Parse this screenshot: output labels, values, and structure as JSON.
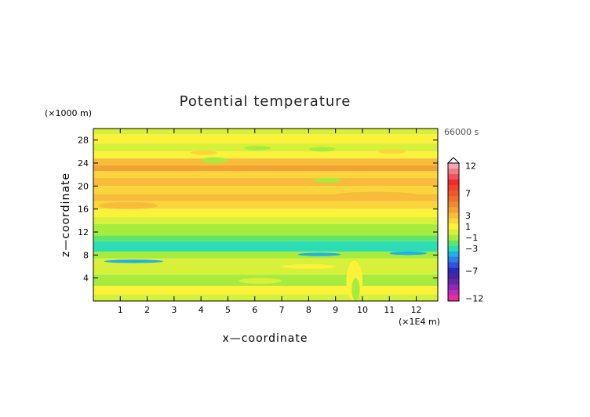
{
  "chart_data": {
    "type": "heatmap",
    "title": "Potential temperature",
    "xlabel": "x—coordinate",
    "ylabel": "z—coordinate",
    "x_unit": "(×1E4 m)",
    "y_unit": "(×1000 m)",
    "time_label": "66000 s",
    "xlim": [
      0,
      12.8
    ],
    "ylim": [
      0,
      30
    ],
    "x_ticks": [
      "1",
      "2",
      "3",
      "4",
      "5",
      "6",
      "7",
      "8",
      "9",
      "10",
      "11",
      "12"
    ],
    "x_tick_values": [
      1,
      2,
      3,
      4,
      5,
      6,
      7,
      8,
      9,
      10,
      11,
      12
    ],
    "y_ticks": [
      "4",
      "8",
      "12",
      "16",
      "20",
      "24",
      "28"
    ],
    "y_tick_values": [
      4,
      8,
      12,
      16,
      20,
      24,
      28
    ],
    "colorbar": {
      "labels": [
        "12",
        "7",
        "3",
        "1",
        "−1",
        "−3",
        "−7",
        "−12"
      ],
      "label_levels": [
        12,
        7,
        3,
        1,
        -1,
        -3,
        -7,
        -12
      ],
      "levels": [
        12,
        11,
        10,
        9,
        8,
        7,
        6,
        5,
        4,
        3,
        2,
        1,
        0,
        -1,
        -2,
        -3,
        -4,
        -5,
        -6,
        -7,
        -8,
        -9,
        -10,
        -11,
        -12
      ],
      "colors": [
        "#f7a7b3",
        "#f57b86",
        "#f2505c",
        "#ee2a2a",
        "#f2402a",
        "#f0582a",
        "#ef6f2b",
        "#f08a30",
        "#f3a236",
        "#f7bc3a",
        "#fad53c",
        "#fdf23a",
        "#d7f13a",
        "#a7ec3c",
        "#5fe66a",
        "#2cdcb4",
        "#20b0e8",
        "#2f7de8",
        "#3252d8",
        "#2a2ab8",
        "#4326a0",
        "#6626a8",
        "#8e27b6",
        "#c22ab8",
        "#ee2a9c"
      ]
    },
    "bands": [
      {
        "z": [
          0,
          1.2
        ],
        "value": 0
      },
      {
        "z": [
          1.2,
          2.6
        ],
        "value": 1
      },
      {
        "z": [
          2.6,
          4.6
        ],
        "value": -1
      },
      {
        "z": [
          4.6,
          6.0
        ],
        "value": 0
      },
      {
        "z": [
          6.0,
          7.4
        ],
        "value": 0
      },
      {
        "z": [
          7.4,
          8.6
        ],
        "value": -1
      },
      {
        "z": [
          8.6,
          10.4
        ],
        "value": -3
      },
      {
        "z": [
          10.4,
          11.4
        ],
        "value": -2
      },
      {
        "z": [
          11.4,
          13.4
        ],
        "value": -1
      },
      {
        "z": [
          13.4,
          14.6
        ],
        "value": 0
      },
      {
        "z": [
          14.6,
          16.0
        ],
        "value": 1
      },
      {
        "z": [
          16.0,
          17.4
        ],
        "value": 2
      },
      {
        "z": [
          17.4,
          18.6
        ],
        "value": 3
      },
      {
        "z": [
          18.6,
          20.0
        ],
        "value": 2
      },
      {
        "z": [
          20.0,
          21.4
        ],
        "value": 3
      },
      {
        "z": [
          21.4,
          22.6
        ],
        "value": 2
      },
      {
        "z": [
          22.6,
          23.6
        ],
        "value": 4
      },
      {
        "z": [
          23.6,
          24.8
        ],
        "value": 3
      },
      {
        "z": [
          24.8,
          26.0
        ],
        "value": 1
      },
      {
        "z": [
          26.0,
          27.4
        ],
        "value": 0
      },
      {
        "z": [
          27.4,
          29.0
        ],
        "value": 1
      },
      {
        "z": [
          29.0,
          30.0
        ],
        "value": 0
      }
    ],
    "features": [
      {
        "x": [
          5.6,
          6.6
        ],
        "z": [
          26.2,
          27.0
        ],
        "value": -1
      },
      {
        "x": [
          8.0,
          9.0
        ],
        "z": [
          26.0,
          26.8
        ],
        "value": -1
      },
      {
        "x": [
          3.6,
          4.6
        ],
        "z": [
          25.4,
          26.2
        ],
        "value": 2
      },
      {
        "x": [
          10.6,
          11.6
        ],
        "z": [
          25.6,
          26.4
        ],
        "value": 2
      },
      {
        "x": [
          4.0,
          5.0
        ],
        "z": [
          24.0,
          25.0
        ],
        "value": -1
      },
      {
        "x": [
          8.2,
          9.2
        ],
        "z": [
          20.6,
          21.4
        ],
        "value": -1
      },
      {
        "x": [
          9.0,
          12.0
        ],
        "z": [
          18.0,
          19.0
        ],
        "value": 3
      },
      {
        "x": [
          0.2,
          2.4
        ],
        "z": [
          16.0,
          17.2
        ],
        "value": 3
      },
      {
        "x": [
          7.6,
          9.2
        ],
        "z": [
          7.8,
          8.4
        ],
        "value": -4
      },
      {
        "x": [
          11.0,
          12.4
        ],
        "z": [
          8.0,
          8.6
        ],
        "value": -4
      },
      {
        "x": [
          0.4,
          2.6
        ],
        "z": [
          6.6,
          7.2
        ],
        "value": -4
      },
      {
        "x": [
          9.4,
          10.0
        ],
        "z": [
          0.0,
          7.0
        ],
        "value": 1
      },
      {
        "x": [
          9.6,
          9.9
        ],
        "z": [
          0.0,
          4.0
        ],
        "value": -1
      },
      {
        "x": [
          7.0,
          9.0
        ],
        "z": [
          5.6,
          6.4
        ],
        "value": 1
      },
      {
        "x": [
          5.4,
          7.0
        ],
        "z": [
          3.0,
          4.0
        ],
        "value": 0
      }
    ]
  }
}
